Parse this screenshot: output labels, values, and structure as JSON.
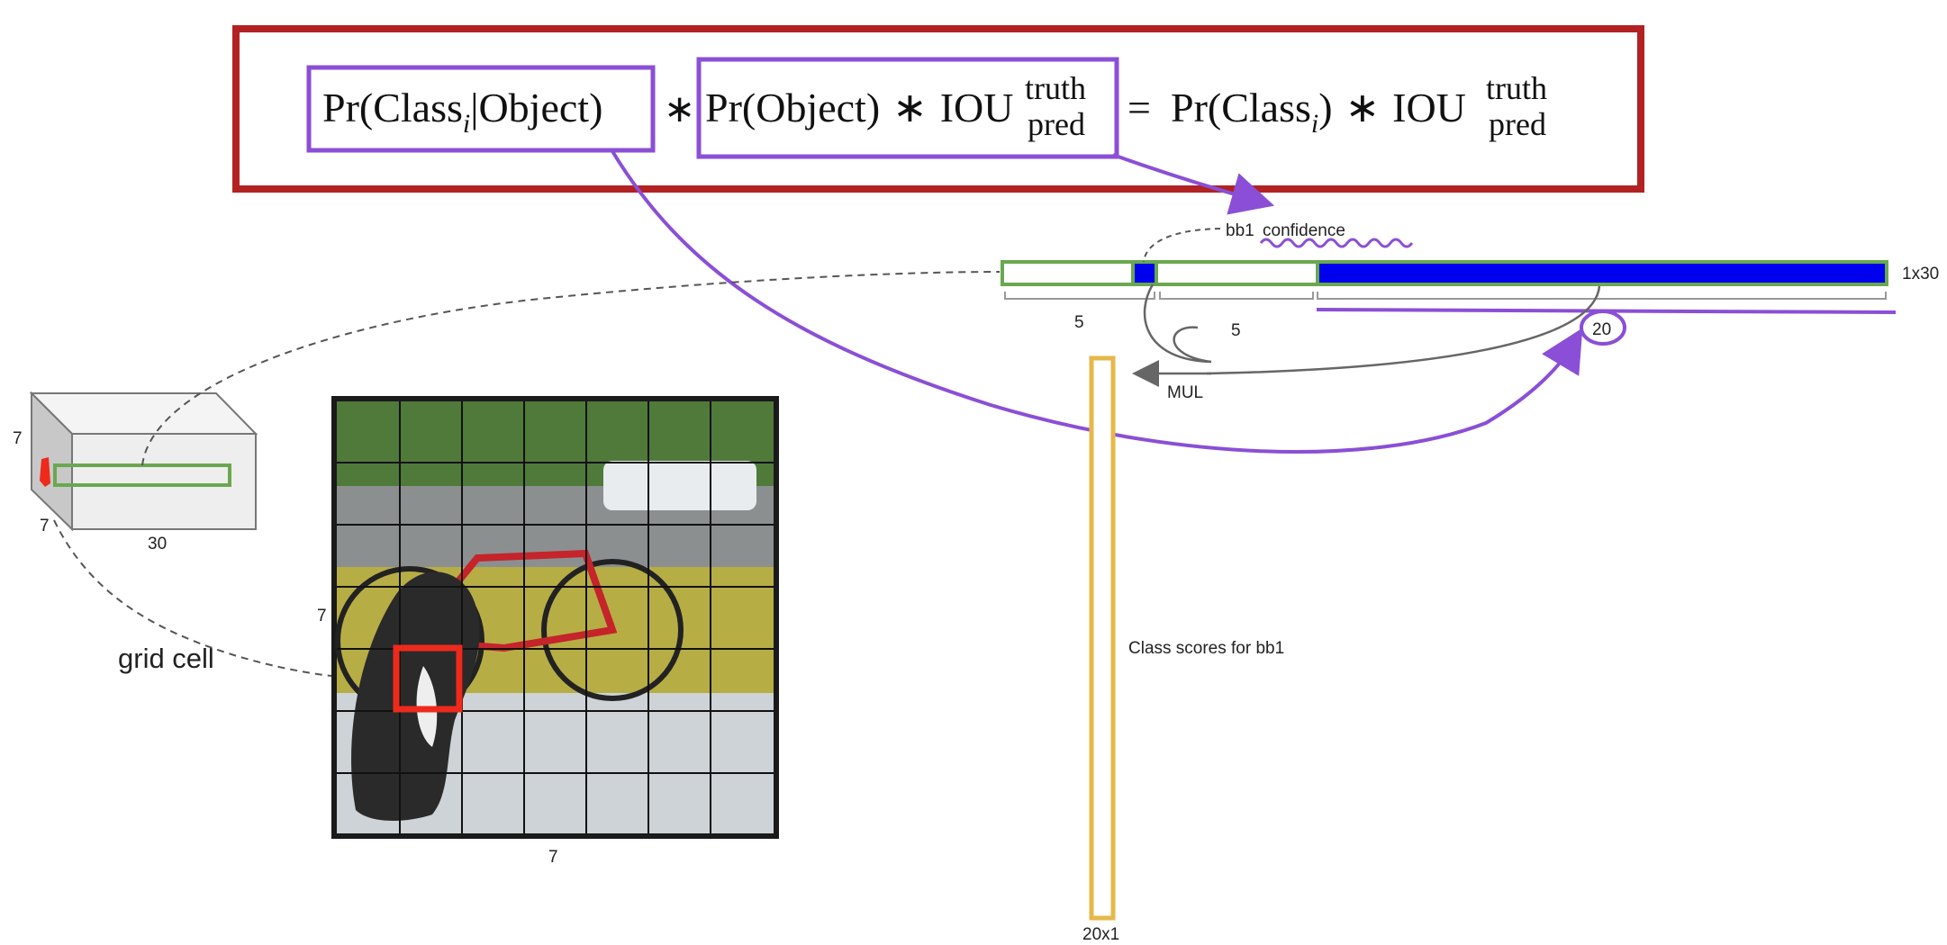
{
  "formula": {
    "term1": {
      "pr": "Pr(Class",
      "sub": "i",
      "rest": "|Object)"
    },
    "op1": "∗",
    "term2": {
      "pr": "Pr(Object)",
      "op": "∗",
      "iou": "IOU",
      "sup": "truth",
      "sub": "pred"
    },
    "equals": "=",
    "rhs": {
      "pr": "Pr(Class",
      "sub": "i",
      "close": ")",
      "op": "∗",
      "iou": "IOU",
      "sup": "truth",
      "sub2": "pred"
    }
  },
  "vector": {
    "size_label": "1x30",
    "bb1_label": "bb1",
    "confidence_label": "confidence",
    "bracket1": "5",
    "bracket2": "5",
    "bracket3": "20",
    "mul_label": "MUL"
  },
  "class_scores": {
    "label": "Class scores for bb1",
    "size_label": "20x1"
  },
  "tensor": {
    "height_label": "7",
    "depth_label": "7",
    "width_label": "30",
    "grid_cell_label": "grid cell"
  },
  "photo": {
    "left_label": "7",
    "bottom_label": "7"
  },
  "colors": {
    "formula_border": "#b22222",
    "annotation": "#8a4fd6",
    "vector_outline": "#6aa84f",
    "vector_fill": "#0000ee",
    "class_bar": "#e6b84a",
    "grid_cell": "#ee2a1c"
  }
}
